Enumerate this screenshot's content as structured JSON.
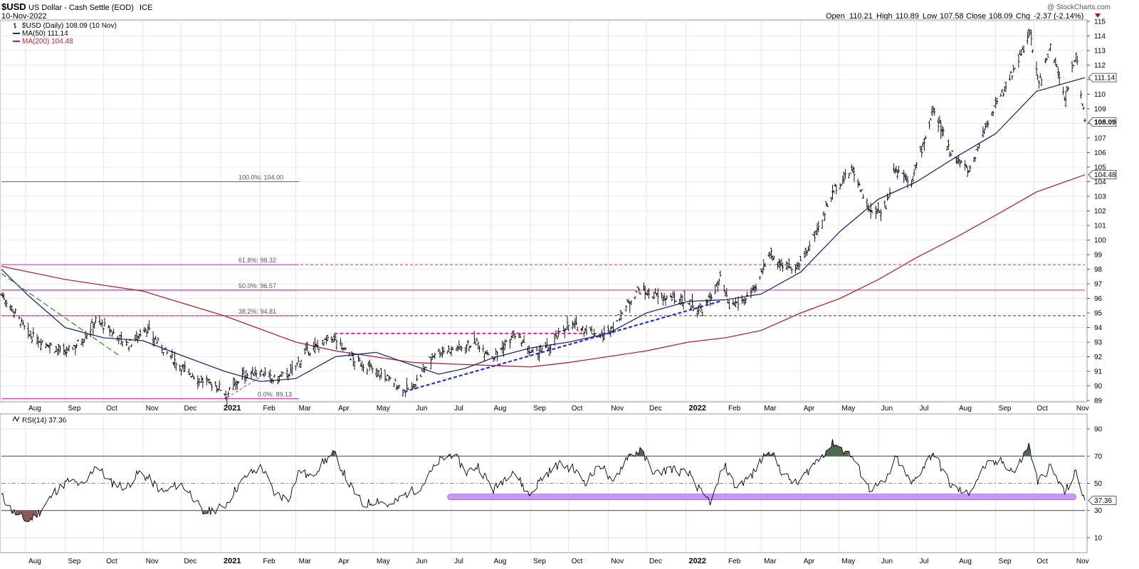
{
  "header": {
    "symbol": "$USD",
    "name": "US Dollar - Cash Settle (EOD)",
    "exchange": "ICE",
    "date": "10-Nov-2022",
    "watermark": "@ StockCharts.com",
    "open_label": "Open",
    "open": "110.21",
    "high_label": "High",
    "high": "110.89",
    "low_label": "Low",
    "low": "107.58",
    "close_label": "Close",
    "close": "108.09",
    "chg_label": "Chg",
    "chg": "-2.37 (-2.14%)"
  },
  "legend": {
    "price": "$USD (Daily) 108.09 (10 Nov)",
    "ma50": "MA(50) 111.14",
    "ma200": "MA(200) 104.48",
    "rsi": "RSI(14) 37.36"
  },
  "colors": {
    "price": "#000000",
    "ma50": "#1f2a7a",
    "ma200": "#b0263c",
    "fib": "#d81ea8",
    "trend": "#2233cc",
    "downtrend": "#2a8a2a",
    "support_band": "#c79af0",
    "rsi_over": "#4f6b4f",
    "rsi_under": "#8a5a5a",
    "grid": "#d8d8d8"
  },
  "chart_data": {
    "type": "line",
    "price_axis": {
      "min": 89,
      "max": 115,
      "ticks": [
        89,
        90,
        91,
        92,
        93,
        94,
        95,
        96,
        97,
        98,
        99,
        100,
        101,
        102,
        103,
        104,
        105,
        106,
        107,
        108,
        109,
        110,
        111,
        112,
        113,
        114,
        115
      ]
    },
    "x_axis": {
      "start": "2020-07-13",
      "end": "2022-11-10",
      "labels": [
        {
          "date": "2020-08-01",
          "text": "Aug"
        },
        {
          "date": "2020-09-01",
          "text": "Sep"
        },
        {
          "date": "2020-10-01",
          "text": "Oct"
        },
        {
          "date": "2020-11-01",
          "text": "Nov"
        },
        {
          "date": "2020-12-01",
          "text": "Dec"
        },
        {
          "date": "2021-01-01",
          "text": "2021"
        },
        {
          "date": "2021-02-01",
          "text": "Feb"
        },
        {
          "date": "2021-03-01",
          "text": "Mar"
        },
        {
          "date": "2021-04-01",
          "text": "Apr"
        },
        {
          "date": "2021-05-01",
          "text": "May"
        },
        {
          "date": "2021-06-01",
          "text": "Jun"
        },
        {
          "date": "2021-07-01",
          "text": "Jul"
        },
        {
          "date": "2021-08-01",
          "text": "Aug"
        },
        {
          "date": "2021-09-01",
          "text": "Sep"
        },
        {
          "date": "2021-10-01",
          "text": "Oct"
        },
        {
          "date": "2021-11-01",
          "text": "Nov"
        },
        {
          "date": "2021-12-01",
          "text": "Dec"
        },
        {
          "date": "2022-01-01",
          "text": "2022"
        },
        {
          "date": "2022-02-01",
          "text": "Feb"
        },
        {
          "date": "2022-03-01",
          "text": "Mar"
        },
        {
          "date": "2022-04-01",
          "text": "Apr"
        },
        {
          "date": "2022-05-01",
          "text": "May"
        },
        {
          "date": "2022-06-01",
          "text": "Jun"
        },
        {
          "date": "2022-07-01",
          "text": "Jul"
        },
        {
          "date": "2022-08-01",
          "text": "Aug"
        },
        {
          "date": "2022-09-01",
          "text": "Sep"
        },
        {
          "date": "2022-10-01",
          "text": "Oct"
        },
        {
          "date": "2022-11-01",
          "text": "Nov"
        }
      ]
    },
    "price_series": {
      "name": "$USD",
      "points": [
        [
          "2020-07-13",
          96.3
        ],
        [
          "2020-07-24",
          95.0
        ],
        [
          "2020-08-03",
          93.5
        ],
        [
          "2020-08-18",
          92.9
        ],
        [
          "2020-08-31",
          92.2
        ],
        [
          "2020-09-14",
          93.1
        ],
        [
          "2020-09-25",
          94.5
        ],
        [
          "2020-10-09",
          93.6
        ],
        [
          "2020-10-21",
          92.8
        ],
        [
          "2020-11-03",
          94.0
        ],
        [
          "2020-11-16",
          92.6
        ],
        [
          "2020-12-01",
          91.3
        ],
        [
          "2020-12-16",
          90.4
        ],
        [
          "2020-12-31",
          89.9
        ],
        [
          "2021-01-06",
          89.4
        ],
        [
          "2021-01-18",
          90.7
        ],
        [
          "2021-02-01",
          91.0
        ],
        [
          "2021-02-11",
          90.4
        ],
        [
          "2021-02-25",
          90.9
        ],
        [
          "2021-03-09",
          92.3
        ],
        [
          "2021-03-31",
          93.3
        ],
        [
          "2021-04-15",
          91.8
        ],
        [
          "2021-05-03",
          91.0
        ],
        [
          "2021-05-14",
          90.4
        ],
        [
          "2021-05-25",
          89.7
        ],
        [
          "2021-06-01",
          89.9
        ],
        [
          "2021-06-18",
          92.3
        ],
        [
          "2021-07-07",
          92.6
        ],
        [
          "2021-07-20",
          93.0
        ],
        [
          "2021-08-03",
          92.0
        ],
        [
          "2021-08-20",
          93.5
        ],
        [
          "2021-09-03",
          92.1
        ],
        [
          "2021-09-15",
          92.6
        ],
        [
          "2021-09-30",
          94.2
        ],
        [
          "2021-10-14",
          93.9
        ],
        [
          "2021-10-28",
          93.4
        ],
        [
          "2021-11-05",
          94.1
        ],
        [
          "2021-11-24",
          96.6
        ],
        [
          "2021-12-10",
          96.1
        ],
        [
          "2021-12-31",
          95.9
        ],
        [
          "2022-01-14",
          95.1
        ],
        [
          "2022-01-28",
          97.3
        ],
        [
          "2022-02-04",
          95.4
        ],
        [
          "2022-02-15",
          95.9
        ],
        [
          "2022-02-25",
          96.6
        ],
        [
          "2022-03-07",
          99.2
        ],
        [
          "2022-03-17",
          98.3
        ],
        [
          "2022-03-31",
          98.2
        ],
        [
          "2022-04-12",
          100.3
        ],
        [
          "2022-04-28",
          103.6
        ],
        [
          "2022-05-12",
          104.8
        ],
        [
          "2022-05-27",
          101.7
        ],
        [
          "2022-06-07",
          102.3
        ],
        [
          "2022-06-14",
          105.0
        ],
        [
          "2022-06-27",
          104.0
        ],
        [
          "2022-07-14",
          108.8
        ],
        [
          "2022-07-29",
          105.9
        ],
        [
          "2022-08-11",
          104.7
        ],
        [
          "2022-08-26",
          108.2
        ],
        [
          "2022-09-07",
          110.2
        ],
        [
          "2022-09-28",
          114.1
        ],
        [
          "2022-10-05",
          110.7
        ],
        [
          "2022-10-14",
          113.2
        ],
        [
          "2022-10-26",
          109.6
        ],
        [
          "2022-11-03",
          112.9
        ],
        [
          "2022-11-10",
          108.09
        ]
      ]
    },
    "ma50_series": {
      "name": "MA(50)",
      "points": [
        [
          "2020-07-13",
          98.0
        ],
        [
          "2020-08-03",
          96.2
        ],
        [
          "2020-09-01",
          94.0
        ],
        [
          "2020-10-01",
          93.3
        ],
        [
          "2020-11-01",
          93.1
        ],
        [
          "2020-12-01",
          92.1
        ],
        [
          "2021-01-04",
          91.0
        ],
        [
          "2021-02-01",
          90.3
        ],
        [
          "2021-03-01",
          90.5
        ],
        [
          "2021-04-01",
          92.0
        ],
        [
          "2021-05-03",
          92.3
        ],
        [
          "2021-06-01",
          91.4
        ],
        [
          "2021-06-21",
          90.8
        ],
        [
          "2021-07-12",
          91.2
        ],
        [
          "2021-08-02",
          91.9
        ],
        [
          "2021-09-01",
          92.6
        ],
        [
          "2021-10-01",
          93.0
        ],
        [
          "2021-11-01",
          93.6
        ],
        [
          "2021-12-01",
          95.0
        ],
        [
          "2022-01-03",
          95.8
        ],
        [
          "2022-02-01",
          95.9
        ],
        [
          "2022-03-01",
          96.3
        ],
        [
          "2022-04-01",
          97.8
        ],
        [
          "2022-05-02",
          100.6
        ],
        [
          "2022-06-01",
          102.8
        ],
        [
          "2022-07-01",
          104.0
        ],
        [
          "2022-08-01",
          105.7
        ],
        [
          "2022-09-01",
          107.3
        ],
        [
          "2022-10-03",
          110.2
        ],
        [
          "2022-11-10",
          111.14
        ]
      ]
    },
    "ma200_series": {
      "name": "MA(200)",
      "points": [
        [
          "2020-07-13",
          98.2
        ],
        [
          "2020-09-01",
          97.3
        ],
        [
          "2020-11-01",
          96.5
        ],
        [
          "2021-01-04",
          94.8
        ],
        [
          "2021-03-01",
          93.0
        ],
        [
          "2021-04-01",
          92.4
        ],
        [
          "2021-06-01",
          91.6
        ],
        [
          "2021-08-01",
          91.4
        ],
        [
          "2021-09-01",
          91.3
        ],
        [
          "2021-10-01",
          91.6
        ],
        [
          "2021-12-01",
          92.4
        ],
        [
          "2022-01-03",
          93.0
        ],
        [
          "2022-02-01",
          93.3
        ],
        [
          "2022-03-01",
          93.8
        ],
        [
          "2022-04-01",
          95.0
        ],
        [
          "2022-05-02",
          96.0
        ],
        [
          "2022-06-01",
          97.3
        ],
        [
          "2022-07-01",
          98.8
        ],
        [
          "2022-08-01",
          100.2
        ],
        [
          "2022-09-01",
          101.7
        ],
        [
          "2022-10-03",
          103.3
        ],
        [
          "2022-11-10",
          104.48
        ]
      ]
    },
    "fib_levels": [
      {
        "label": "100.0%: 104.00",
        "value": 104.0,
        "style": "solid"
      },
      {
        "label": "61.8%: 98.32",
        "value": 98.32,
        "style": "dashed"
      },
      {
        "label": "50.0%: 96.57",
        "value": 96.57,
        "style": "solid"
      },
      {
        "label": "38.2%: 94.81",
        "value": 94.81,
        "style": "dashed"
      },
      {
        "label": "0.0%: 89.13",
        "value": 89.13,
        "style": "solid"
      }
    ],
    "trendlines": [
      {
        "name": "rising-support",
        "from": [
          "2021-05-25",
          89.6
        ],
        "to": [
          "2022-01-28",
          95.8
        ],
        "style": "dashed"
      },
      {
        "name": "april-resistance",
        "from": [
          "2021-03-31",
          93.6
        ],
        "to": [
          "2021-10-14",
          93.6
        ],
        "style": "dashed"
      },
      {
        "name": "2020-downtrend",
        "from": [
          "2020-07-13",
          97.7
        ],
        "to": [
          "2020-10-13",
          92.1
        ],
        "style": "dashed"
      },
      {
        "name": "jan-2021-bounce",
        "from": [
          "2021-01-06",
          89.2
        ],
        "to": [
          "2021-02-01",
          90.6
        ],
        "style": "dashed"
      }
    ],
    "price_right_labels": [
      {
        "value": 111.14,
        "text": "111.14"
      },
      {
        "value": 108.09,
        "text": "108.09"
      },
      {
        "value": 104.48,
        "text": "104.48"
      }
    ],
    "rsi": {
      "axis": {
        "min": 0,
        "max": 100,
        "ticks": [
          10,
          30,
          50,
          70,
          90
        ]
      },
      "overbought": 70,
      "oversold": 30,
      "mid": 50,
      "support_band": {
        "from": "2021-06-28",
        "to": "2022-11-03",
        "value": 40
      },
      "current_label": "37.36",
      "points": [
        [
          "2020-07-13",
          41
        ],
        [
          "2020-07-22",
          29
        ],
        [
          "2020-08-03",
          22
        ],
        [
          "2020-08-13",
          30
        ],
        [
          "2020-08-24",
          44
        ],
        [
          "2020-09-04",
          52
        ],
        [
          "2020-09-16",
          48
        ],
        [
          "2020-09-25",
          64
        ],
        [
          "2020-10-06",
          51
        ],
        [
          "2020-10-19",
          47
        ],
        [
          "2020-10-29",
          58
        ],
        [
          "2020-11-06",
          53
        ],
        [
          "2020-11-17",
          43
        ],
        [
          "2020-11-30",
          50
        ],
        [
          "2020-12-09",
          42
        ],
        [
          "2020-12-18",
          28
        ],
        [
          "2021-01-04",
          33
        ],
        [
          "2021-01-13",
          46
        ],
        [
          "2021-01-22",
          56
        ],
        [
          "2021-02-02",
          62
        ],
        [
          "2021-02-12",
          43
        ],
        [
          "2021-02-23",
          38
        ],
        [
          "2021-03-04",
          60
        ],
        [
          "2021-03-12",
          54
        ],
        [
          "2021-03-23",
          66
        ],
        [
          "2021-03-31",
          72
        ],
        [
          "2021-04-12",
          49
        ],
        [
          "2021-04-23",
          34
        ],
        [
          "2021-05-04",
          38
        ],
        [
          "2021-05-14",
          33
        ],
        [
          "2021-05-26",
          42
        ],
        [
          "2021-06-07",
          47
        ],
        [
          "2021-06-21",
          66
        ],
        [
          "2021-07-02",
          72
        ],
        [
          "2021-07-13",
          58
        ],
        [
          "2021-07-22",
          63
        ],
        [
          "2021-08-03",
          45
        ],
        [
          "2021-08-18",
          60
        ],
        [
          "2021-08-31",
          41
        ],
        [
          "2021-09-10",
          54
        ],
        [
          "2021-09-23",
          64
        ],
        [
          "2021-10-04",
          61
        ],
        [
          "2021-10-14",
          51
        ],
        [
          "2021-10-27",
          64
        ],
        [
          "2021-11-04",
          49
        ],
        [
          "2021-11-16",
          70
        ],
        [
          "2021-11-26",
          74
        ],
        [
          "2021-12-08",
          57
        ],
        [
          "2021-12-20",
          61
        ],
        [
          "2022-01-05",
          56
        ],
        [
          "2022-01-14",
          41
        ],
        [
          "2022-01-21",
          36
        ],
        [
          "2022-01-31",
          64
        ],
        [
          "2022-02-09",
          47
        ],
        [
          "2022-02-22",
          56
        ],
        [
          "2022-03-07",
          76
        ],
        [
          "2022-03-18",
          57
        ],
        [
          "2022-03-29",
          49
        ],
        [
          "2022-04-12",
          65
        ],
        [
          "2022-04-27",
          80
        ],
        [
          "2022-05-11",
          70
        ],
        [
          "2022-05-25",
          46
        ],
        [
          "2022-06-06",
          50
        ],
        [
          "2022-06-15",
          69
        ],
        [
          "2022-06-27",
          49
        ],
        [
          "2022-07-14",
          73
        ],
        [
          "2022-07-28",
          48
        ],
        [
          "2022-08-10",
          42
        ],
        [
          "2022-08-24",
          63
        ],
        [
          "2022-09-06",
          66
        ],
        [
          "2022-09-16",
          58
        ],
        [
          "2022-09-27",
          78
        ],
        [
          "2022-10-04",
          51
        ],
        [
          "2022-10-14",
          62
        ],
        [
          "2022-10-25",
          43
        ],
        [
          "2022-11-03",
          58
        ],
        [
          "2022-11-10",
          37.36
        ]
      ]
    }
  }
}
